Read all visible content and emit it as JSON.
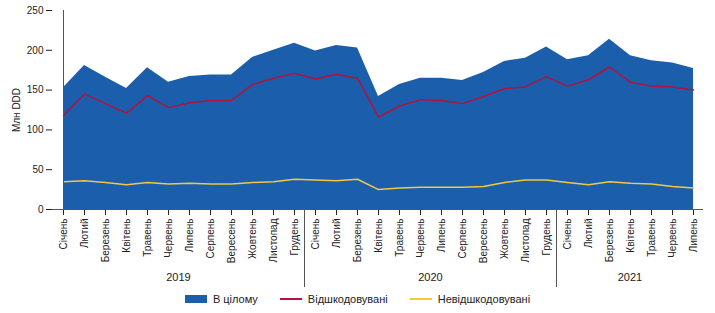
{
  "chart_data": {
    "type": "area",
    "y_label": "Млн DDD",
    "categories": [
      "Січень",
      "Лютий",
      "Березень",
      "Квітень",
      "Травень",
      "Червень",
      "Липень",
      "Серпень",
      "Вересень",
      "Жовтень",
      "Листопад",
      "Грудень",
      "Січень",
      "Лютий",
      "Березень",
      "Квітень",
      "Травень",
      "Червень",
      "Липень",
      "Серпень",
      "Вересень",
      "Жовтень",
      "Листопад",
      "Грудень",
      "Січень",
      "Лютий",
      "Березень",
      "Квітень",
      "Травень",
      "Червень",
      "Липень"
    ],
    "x_groups": [
      {
        "label": "2019",
        "count": 12
      },
      {
        "label": "2020",
        "count": 12
      },
      {
        "label": "2021",
        "count": 7
      }
    ],
    "ylim": [
      0,
      250
    ],
    "yticks": [
      0,
      50,
      100,
      150,
      200,
      250
    ],
    "legend": "bottom",
    "series": [
      {
        "name": "В цілому",
        "type": "area",
        "color": "#1b5eab",
        "values": [
          153,
          181,
          166,
          152,
          178,
          160,
          167,
          169,
          169,
          191,
          200,
          209,
          199,
          206,
          203,
          142,
          157,
          165,
          165,
          162,
          172,
          186,
          190,
          204,
          188,
          193,
          214,
          193,
          187,
          184,
          177
        ]
      },
      {
        "name": "Відшкодовувані",
        "type": "line",
        "color": "#b3123f",
        "values": [
          118,
          145,
          133,
          121,
          143,
          128,
          134,
          137,
          137,
          157,
          165,
          171,
          164,
          170,
          165,
          116,
          130,
          138,
          137,
          133,
          142,
          152,
          154,
          167,
          155,
          163,
          179,
          160,
          155,
          154,
          150
        ]
      },
      {
        "name": "Невідшкодовувані",
        "type": "line",
        "color": "#f2c744",
        "values": [
          35,
          36,
          34,
          31,
          34,
          32,
          33,
          32,
          32,
          34,
          35,
          38,
          37,
          36,
          38,
          25,
          27,
          28,
          28,
          28,
          29,
          34,
          37,
          37,
          34,
          31,
          35,
          33,
          32,
          29,
          27
        ]
      }
    ]
  }
}
